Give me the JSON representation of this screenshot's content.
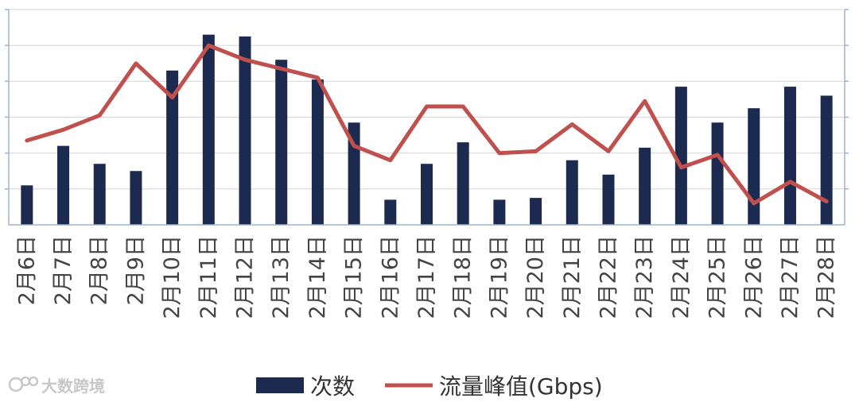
{
  "chart_data": {
    "type": "bar",
    "categories": [
      "2月6日",
      "2月7日",
      "2月8日",
      "2月9日",
      "2月10日",
      "2月11日",
      "2月12日",
      "2月13日",
      "2月14日",
      "2月15日",
      "2月16日",
      "2月17日",
      "2月18日",
      "2月19日",
      "2月20日",
      "2月21日",
      "2月22日",
      "2月23日",
      "2月24日",
      "2月25日",
      "2月26日",
      "2月27日",
      "2月28日"
    ],
    "series": [
      {
        "name": "次数",
        "type": "bar",
        "color": "#1b2a4e",
        "values": [
          1.1,
          2.2,
          1.7,
          1.5,
          4.3,
          5.3,
          5.25,
          4.6,
          4.05,
          2.85,
          0.7,
          1.7,
          2.3,
          0.7,
          0.75,
          1.8,
          1.4,
          2.15,
          3.85,
          2.85,
          3.25,
          3.85,
          3.6
        ]
      },
      {
        "name": "流量峰值(Gbps)",
        "type": "line",
        "color": "#c0504d",
        "values": [
          2.35,
          2.65,
          3.05,
          4.5,
          3.55,
          5.0,
          4.6,
          4.35,
          4.1,
          2.2,
          1.8,
          3.3,
          3.3,
          2.0,
          2.05,
          2.8,
          2.05,
          3.45,
          1.6,
          1.95,
          0.6,
          1.2,
          0.65
        ]
      }
    ],
    "ylim": [
      0,
      6
    ],
    "grid": true,
    "legend": "bottom-center"
  },
  "watermark": {
    "text": "大数跨境",
    "icon": "brand-logo-icon"
  }
}
